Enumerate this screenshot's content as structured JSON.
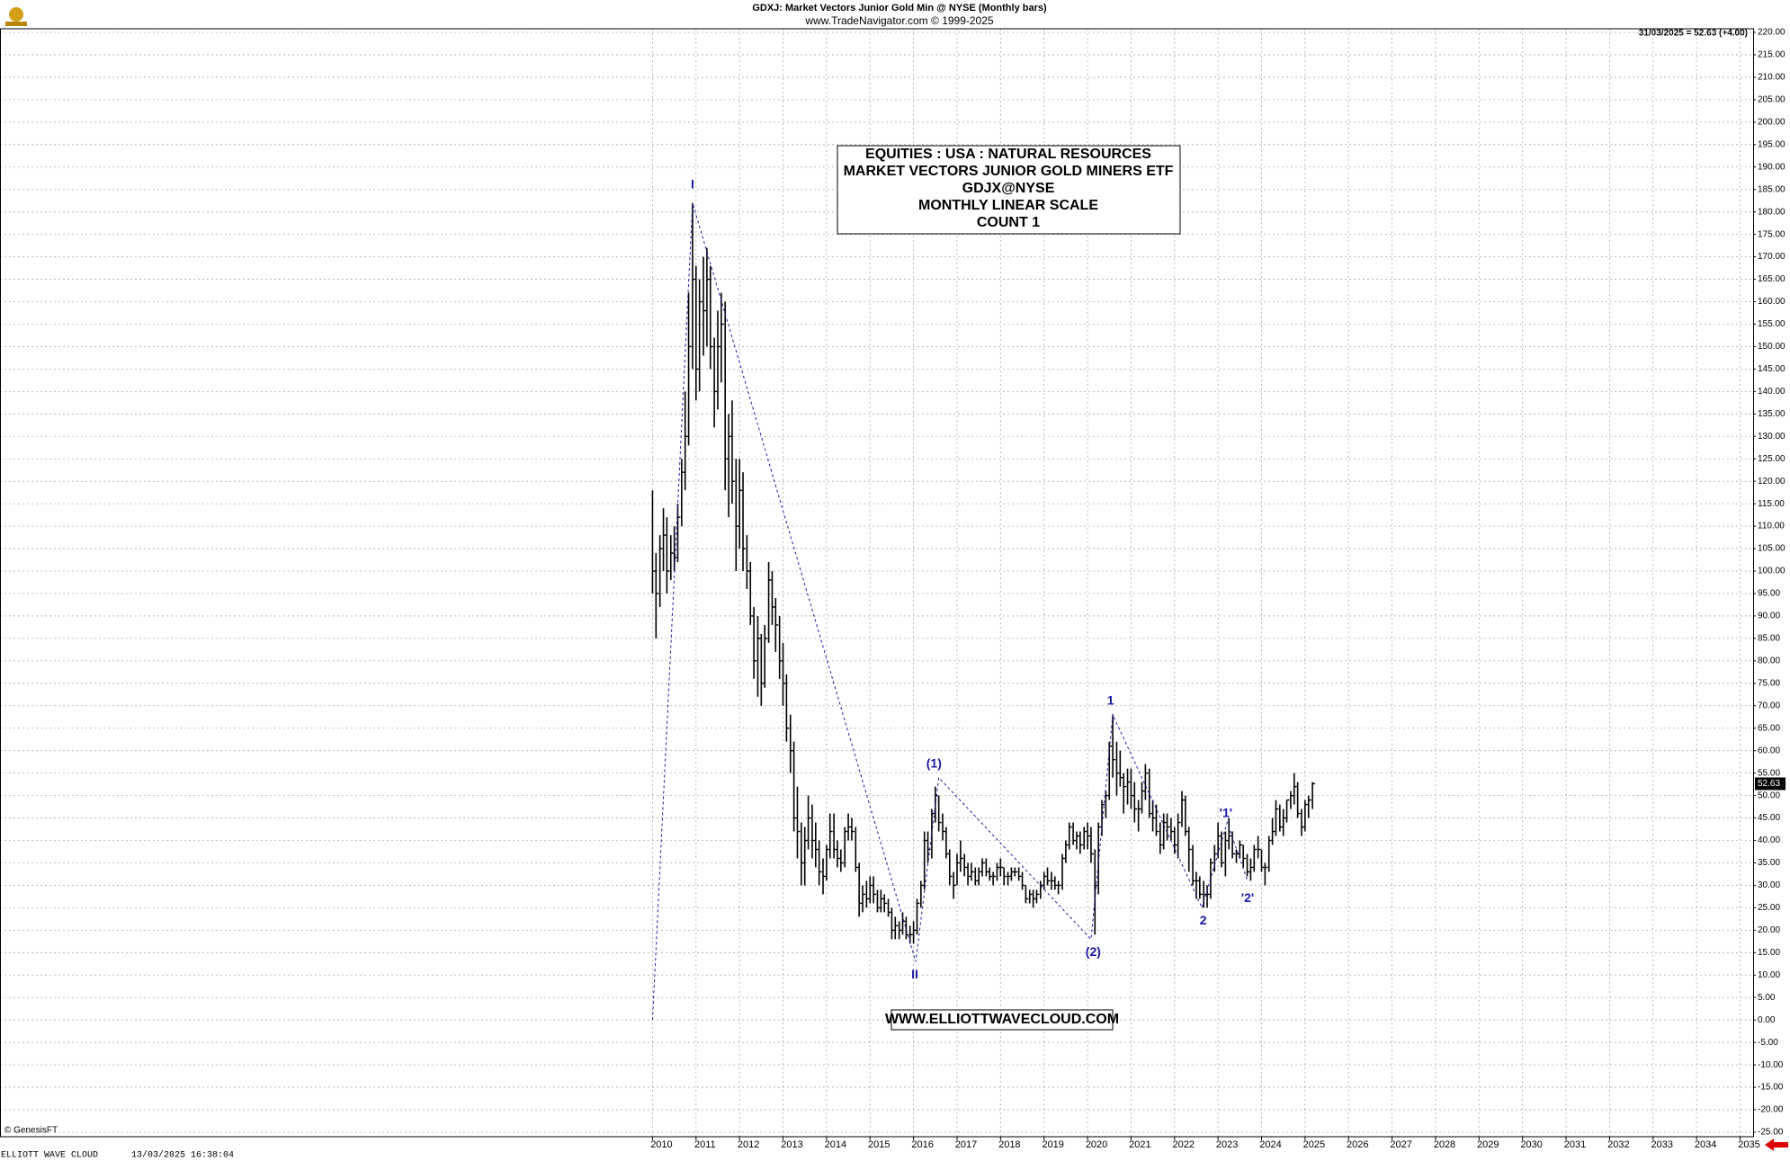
{
  "chart_data": {
    "type": "ohlc",
    "title": "GDXJ:  Market Vectors Junior Gold Min @ NYSE  (Monthly bars)",
    "subtitle": "www.TradeNavigator.com © 1999-2025",
    "last_quote": "31/03/2025 = 52.63 (+4.00)",
    "info_box": [
      "EQUITIES : USA : NATURAL RESOURCES",
      "MARKET VECTORS JUNIOR GOLD MINERS ETF",
      "GDJX@NYSE",
      "MONTHLY LINEAR SCALE",
      "COUNT 1"
    ],
    "website": "WWW.ELLIOTTWAVECLOUD.COM",
    "copyright": "© GenesisFT",
    "footer_left": "ELLIOTT WAVE CLOUD",
    "footer_time": "13/03/2025 16:38:04",
    "color": "#000000",
    "wave_color": "#1a1aa6",
    "grid": true,
    "x": [
      2010.0,
      2010.08,
      2010.17,
      2010.25,
      2010.33,
      2010.42,
      2010.5,
      2010.58,
      2010.67,
      2010.75,
      2010.83,
      2010.92,
      2011.0,
      2011.08,
      2011.17,
      2011.25,
      2011.33,
      2011.42,
      2011.5,
      2011.58,
      2011.67,
      2011.75,
      2011.83,
      2011.92,
      2012.0,
      2012.08,
      2012.17,
      2012.25,
      2012.33,
      2012.42,
      2012.5,
      2012.58,
      2012.67,
      2012.75,
      2012.83,
      2012.92,
      2013.0,
      2013.08,
      2013.17,
      2013.25,
      2013.33,
      2013.42,
      2013.5,
      2013.58,
      2013.67,
      2013.75,
      2013.83,
      2013.92,
      2014.0,
      2014.08,
      2014.17,
      2014.25,
      2014.33,
      2014.42,
      2014.5,
      2014.58,
      2014.67,
      2014.75,
      2014.83,
      2014.92,
      2015.0,
      2015.08,
      2015.17,
      2015.25,
      2015.33,
      2015.42,
      2015.5,
      2015.58,
      2015.67,
      2015.75,
      2015.83,
      2015.92,
      2016.0,
      2016.08,
      2016.17,
      2016.25,
      2016.33,
      2016.42,
      2016.5,
      2016.58,
      2016.67,
      2016.75,
      2016.83,
      2016.92,
      2017.0,
      2017.08,
      2017.17,
      2017.25,
      2017.33,
      2017.42,
      2017.5,
      2017.58,
      2017.67,
      2017.75,
      2017.83,
      2017.92,
      2018.0,
      2018.08,
      2018.17,
      2018.25,
      2018.33,
      2018.42,
      2018.5,
      2018.58,
      2018.67,
      2018.75,
      2018.83,
      2018.92,
      2019.0,
      2019.08,
      2019.17,
      2019.25,
      2019.33,
      2019.42,
      2019.5,
      2019.58,
      2019.67,
      2019.75,
      2019.83,
      2019.92,
      2020.0,
      2020.08,
      2020.17,
      2020.25,
      2020.33,
      2020.42,
      2020.5,
      2020.58,
      2020.67,
      2020.75,
      2020.83,
      2020.92,
      2021.0,
      2021.08,
      2021.17,
      2021.25,
      2021.33,
      2021.42,
      2021.5,
      2021.58,
      2021.67,
      2021.75,
      2021.83,
      2021.92,
      2022.0,
      2022.08,
      2022.17,
      2022.25,
      2022.33,
      2022.42,
      2022.5,
      2022.58,
      2022.67,
      2022.75,
      2022.83,
      2022.92,
      2023.0,
      2023.08,
      2023.17,
      2023.25,
      2023.33,
      2023.42,
      2023.5,
      2023.58,
      2023.67,
      2023.75,
      2023.83,
      2023.92,
      2024.0,
      2024.08,
      2024.17,
      2024.25,
      2024.33,
      2024.42,
      2024.5,
      2024.58,
      2024.67,
      2024.75,
      2024.83,
      2024.92,
      2025.0,
      2025.08,
      2025.17
    ],
    "high": [
      118,
      104,
      108,
      114,
      112,
      108,
      110,
      115,
      125,
      140,
      162,
      182,
      168,
      165,
      170,
      172,
      168,
      152,
      158,
      162,
      160,
      135,
      138,
      125,
      125,
      122,
      108,
      102,
      92,
      90,
      86,
      88,
      102,
      100,
      94,
      90,
      84,
      77,
      68,
      62,
      52,
      44,
      43,
      50,
      48,
      44,
      40,
      36,
      39,
      46,
      46,
      40,
      38,
      43,
      46,
      45,
      43,
      35,
      30,
      31,
      32,
      32,
      29,
      29,
      28,
      27,
      25,
      23,
      22,
      24,
      23,
      21,
      22,
      27,
      31,
      42,
      42,
      47,
      52,
      50,
      46,
      43,
      38,
      33,
      37,
      40,
      37,
      35,
      35,
      34,
      34,
      36,
      36,
      34,
      33,
      35,
      36,
      34,
      33,
      34,
      34,
      34,
      33,
      30,
      29,
      29,
      29,
      31,
      33,
      34,
      33,
      32,
      31,
      37,
      40,
      44,
      44,
      42,
      42,
      43,
      44,
      43,
      38,
      44,
      49,
      51,
      62,
      68,
      62,
      60,
      55,
      56,
      56,
      53,
      49,
      53,
      57,
      56,
      49,
      48,
      44,
      46,
      46,
      45,
      43,
      46,
      51,
      50,
      43,
      39,
      33,
      32,
      31,
      30,
      36,
      39,
      44,
      42,
      42,
      45,
      42,
      38,
      40,
      39,
      37,
      36,
      39,
      41,
      38,
      35,
      41,
      45,
      49,
      48,
      47,
      49,
      51,
      55,
      53,
      47,
      49,
      50,
      53
    ],
    "low": [
      95,
      85,
      92,
      100,
      95,
      98,
      100,
      102,
      110,
      118,
      128,
      145,
      138,
      140,
      148,
      150,
      145,
      132,
      136,
      142,
      118,
      112,
      115,
      100,
      105,
      100,
      96,
      88,
      76,
      72,
      70,
      74,
      84,
      88,
      82,
      76,
      70,
      62,
      55,
      42,
      36,
      30,
      30,
      38,
      36,
      34,
      30,
      28,
      31,
      36,
      36,
      34,
      33,
      34,
      40,
      40,
      33,
      23,
      24,
      25,
      26,
      26,
      24,
      24,
      24,
      23,
      18,
      18,
      18,
      19,
      18,
      17,
      17,
      19,
      25,
      29,
      35,
      36,
      44,
      42,
      40,
      36,
      30,
      27,
      30,
      33,
      32,
      30,
      31,
      30,
      30,
      32,
      32,
      31,
      30,
      31,
      32,
      30,
      30,
      31,
      32,
      31,
      29,
      26,
      26,
      25,
      26,
      27,
      29,
      30,
      29,
      29,
      28,
      29,
      35,
      38,
      39,
      38,
      37,
      38,
      38,
      35,
      19,
      28,
      41,
      45,
      49,
      54,
      50,
      52,
      46,
      48,
      47,
      44,
      42,
      46,
      49,
      45,
      42,
      41,
      37,
      38,
      40,
      40,
      37,
      36,
      43,
      41,
      33,
      30,
      27,
      27,
      25,
      25,
      27,
      33,
      36,
      34,
      32,
      38,
      36,
      35,
      36,
      34,
      32,
      31,
      33,
      36,
      33,
      30,
      33,
      39,
      41,
      42,
      41,
      44,
      47,
      48,
      45,
      41,
      42,
      45,
      47
    ],
    "close": [
      100,
      95,
      105,
      108,
      100,
      104,
      103,
      112,
      122,
      130,
      150,
      165,
      145,
      160,
      158,
      165,
      150,
      140,
      150,
      155,
      125,
      130,
      120,
      110,
      118,
      105,
      100,
      90,
      80,
      85,
      75,
      85,
      98,
      92,
      88,
      80,
      75,
      65,
      60,
      45,
      42,
      35,
      40,
      45,
      40,
      38,
      33,
      32,
      38,
      42,
      38,
      36,
      35,
      42,
      43,
      42,
      34,
      26,
      28,
      27,
      30,
      28,
      25,
      27,
      26,
      24,
      20,
      21,
      20,
      22,
      19,
      19,
      20,
      26,
      30,
      40,
      38,
      46,
      50,
      44,
      42,
      37,
      32,
      30,
      35,
      36,
      34,
      32,
      33,
      31,
      33,
      35,
      33,
      32,
      32,
      34,
      34,
      32,
      32,
      33,
      33,
      32,
      30,
      27,
      28,
      27,
      28,
      30,
      32,
      31,
      31,
      30,
      30,
      36,
      39,
      43,
      40,
      41,
      39,
      42,
      41,
      37,
      30,
      43,
      48,
      50,
      61,
      58,
      55,
      54,
      52,
      53,
      50,
      47,
      47,
      51,
      55,
      46,
      45,
      42,
      39,
      44,
      43,
      42,
      39,
      44,
      49,
      42,
      38,
      31,
      31,
      28,
      28,
      28,
      35,
      37,
      41,
      35,
      40,
      41,
      37,
      37,
      39,
      36,
      33,
      34,
      38,
      38,
      34,
      34,
      40,
      42,
      47,
      43,
      45,
      49,
      50,
      52,
      46,
      43,
      48,
      49,
      52.63
    ],
    "xlim": [
      1995,
      2035.3
    ],
    "xticks": [
      2010,
      2011,
      2012,
      2013,
      2014,
      2015,
      2016,
      2017,
      2018,
      2019,
      2020,
      2021,
      2022,
      2023,
      2024,
      2025,
      2026,
      2027,
      2028,
      2029,
      2030,
      2031,
      2032,
      2033,
      2034,
      2035
    ],
    "ylim": [
      -25,
      220
    ],
    "yticks": [
      {
        "value": 220,
        "label": "220.00"
      },
      {
        "value": 215,
        "label": "215.00"
      },
      {
        "value": 210,
        "label": "210.00"
      },
      {
        "value": 205,
        "label": "205.00"
      },
      {
        "value": 200,
        "label": "200.00"
      },
      {
        "value": 195,
        "label": "195.00"
      },
      {
        "value": 190,
        "label": "190.00"
      },
      {
        "value": 185,
        "label": "185.00"
      },
      {
        "value": 180,
        "label": "180.00"
      },
      {
        "value": 175,
        "label": "175.00"
      },
      {
        "value": 170,
        "label": "170.00"
      },
      {
        "value": 165,
        "label": "165.00"
      },
      {
        "value": 160,
        "label": "160.00"
      },
      {
        "value": 155,
        "label": "155.00"
      },
      {
        "value": 150,
        "label": "150.00"
      },
      {
        "value": 145,
        "label": "145.00"
      },
      {
        "value": 140,
        "label": "140.00"
      },
      {
        "value": 135,
        "label": "135.00"
      },
      {
        "value": 130,
        "label": "130.00"
      },
      {
        "value": 125,
        "label": "125.00"
      },
      {
        "value": 120,
        "label": "120.00"
      },
      {
        "value": 115,
        "label": "115.00"
      },
      {
        "value": 110,
        "label": "110.00"
      },
      {
        "value": 105,
        "label": "105.00"
      },
      {
        "value": 100,
        "label": "100.00"
      },
      {
        "value": 95,
        "label": "95.00"
      },
      {
        "value": 90,
        "label": "90.00"
      },
      {
        "value": 85,
        "label": "85.00"
      },
      {
        "value": 80,
        "label": "80.00"
      },
      {
        "value": 75,
        "label": "75.00"
      },
      {
        "value": 70,
        "label": "70.00"
      },
      {
        "value": 65,
        "label": "65.00"
      },
      {
        "value": 60,
        "label": "60.00"
      },
      {
        "value": 55,
        "label": "55.00"
      },
      {
        "value": 50,
        "label": "50.00"
      },
      {
        "value": 45,
        "label": "45.00"
      },
      {
        "value": 40,
        "label": "40.00"
      },
      {
        "value": 35,
        "label": "35.00"
      },
      {
        "value": 30,
        "label": "30.00"
      },
      {
        "value": 25,
        "label": "25.00"
      },
      {
        "value": 20,
        "label": "20.00"
      },
      {
        "value": 15,
        "label": "15.00"
      },
      {
        "value": 10,
        "label": "10.00"
      },
      {
        "value": 5,
        "label": "5.00"
      },
      {
        "value": 0,
        "label": "0.00"
      },
      {
        "value": -5,
        "label": "-5.00"
      },
      {
        "value": -10,
        "label": "-10.00"
      },
      {
        "value": -15,
        "label": "-15.00"
      },
      {
        "value": -20,
        "label": "-20.00"
      },
      {
        "value": -25,
        "label": "-25.00"
      }
    ],
    "wave_labels": [
      {
        "text": "I",
        "x": 2010.92,
        "y": 186
      },
      {
        "text": "II",
        "x": 2016.03,
        "y": 10
      },
      {
        "text": "(1)",
        "x": 2016.47,
        "y": 57
      },
      {
        "text": "(2)",
        "x": 2020.13,
        "y": 15
      },
      {
        "text": "1",
        "x": 2020.53,
        "y": 71
      },
      {
        "text": "2",
        "x": 2022.66,
        "y": 22
      },
      {
        "text": "'1'",
        "x": 2023.18,
        "y": 46
      },
      {
        "text": "'2'",
        "x": 2023.68,
        "y": 27
      }
    ],
    "wave_line": {
      "x": [
        2010.0,
        2010.92,
        2016.05,
        2016.58,
        2020.08,
        2020.58,
        2022.63,
        2023.21,
        2023.68
      ],
      "y": [
        0,
        182,
        13,
        54,
        18,
        68,
        25,
        44,
        31
      ]
    }
  }
}
